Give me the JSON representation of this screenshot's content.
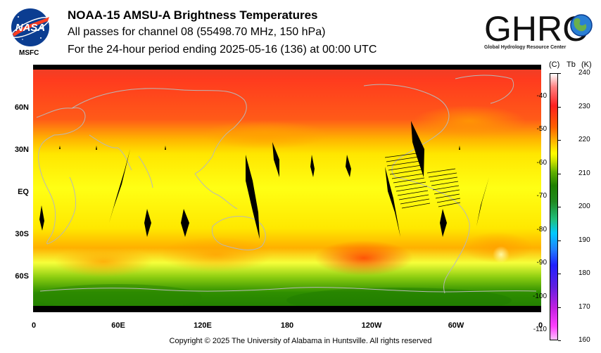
{
  "header": {
    "title": "NOAA-15 AMSU-A Brightness Temperatures",
    "subtitle": "All passes for channel 08 (55498.70 MHz, 150 hPa)",
    "period": "For the 24-hour period ending 2025-05-16 (136) at 00:00 UTC"
  },
  "logos": {
    "nasa": "NASA",
    "msfc": "MSFC",
    "ghrc": "GHRC",
    "ghrc_full": "Global Hydrology Resource Center"
  },
  "map": {
    "lat_labels": [
      "60N",
      "30N",
      "EQ",
      "30S",
      "60S"
    ],
    "lon_labels": [
      "0",
      "60E",
      "120E",
      "180",
      "120W",
      "60W",
      "0"
    ]
  },
  "colorbar": {
    "unit_c": "(C)",
    "var": "Tb",
    "unit_k": "(K)",
    "celsius_ticks": [
      "-40",
      "-50",
      "-60",
      "-70",
      "-80",
      "-90",
      "-100",
      "-110"
    ],
    "kelvin_ticks": [
      "240",
      "230",
      "220",
      "210",
      "200",
      "190",
      "180",
      "170",
      "160"
    ],
    "range_k": [
      160,
      240
    ]
  },
  "colors": {
    "cold": "#ff00ff",
    "mid": "#228b00",
    "warm": "#ffff00",
    "hot": "#ff0000",
    "no_data": "#000000"
  },
  "footer": {
    "copyright": "Copyright © 2025 The University of Alabama in Huntsville.  All rights reserved"
  }
}
